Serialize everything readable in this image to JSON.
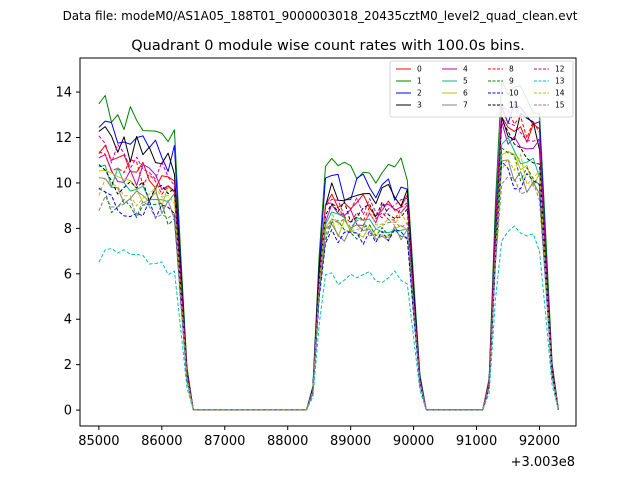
{
  "header": "Data file: modeM0/AS1A05_188T01_9000003018_20435cztM0_level2_quad_clean.evt",
  "chart_data": {
    "type": "line",
    "title": "Quadrant 0 module wise count rates with 100.0s bins.",
    "xlabel": "",
    "ylabel": "",
    "x_offset_label": "+3.003e8",
    "xlim": [
      84700,
      92580
    ],
    "ylim": [
      -0.7,
      15.5
    ],
    "x_ticks": [
      85000,
      86000,
      87000,
      88000,
      89000,
      90000,
      91000,
      92000
    ],
    "x_tick_labels": [
      "85000",
      "86000",
      "87000",
      "88000",
      "89000",
      "90000",
      "91000",
      "92000"
    ],
    "y_ticks": [
      0,
      2,
      4,
      6,
      8,
      10,
      12,
      14
    ],
    "y_tick_labels": [
      "0",
      "2",
      "4",
      "6",
      "8",
      "10",
      "12",
      "14"
    ],
    "grid": false,
    "legend": {
      "placement": "top-right",
      "columns": 4
    },
    "x_range": {
      "start": 85000,
      "step": 100,
      "count": 74
    },
    "segments": [
      {
        "from": 85000,
        "to": 86500,
        "on": true
      },
      {
        "from": 86500,
        "to": 88400,
        "on": false
      },
      {
        "from": 88400,
        "to": 90200,
        "on": true
      },
      {
        "from": 90200,
        "to": 91200,
        "on": false
      },
      {
        "from": 91200,
        "to": 92300,
        "on": true
      }
    ],
    "series": [
      {
        "name": "0",
        "color": "#ff0000",
        "style": "solid",
        "levels": [
          10.5,
          9.0,
          12.5
        ]
      },
      {
        "name": "1",
        "color": "#008000",
        "style": "solid",
        "levels": [
          12.5,
          10.5,
          14.0
        ]
      },
      {
        "name": "2",
        "color": "#0000ff",
        "style": "solid",
        "levels": [
          11.5,
          9.8,
          12.8
        ]
      },
      {
        "name": "3",
        "color": "#000000",
        "style": "solid",
        "levels": [
          11.3,
          9.5,
          12.3
        ]
      },
      {
        "name": "4",
        "color": "#bf00bf",
        "style": "solid",
        "levels": [
          10.2,
          8.6,
          12.0
        ]
      },
      {
        "name": "5",
        "color": "#00bf80",
        "style": "solid",
        "levels": [
          9.8,
          8.3,
          11.0
        ]
      },
      {
        "name": "6",
        "color": "#bfbf00",
        "style": "solid",
        "levels": [
          9.6,
          8.0,
          10.5
        ]
      },
      {
        "name": "7",
        "color": "#808080",
        "style": "solid",
        "levels": [
          9.3,
          7.8,
          10.2
        ]
      },
      {
        "name": "8",
        "color": "#ff0000",
        "style": "dashed",
        "levels": [
          10.3,
          8.7,
          12.3
        ]
      },
      {
        "name": "9",
        "color": "#008000",
        "style": "dashed",
        "levels": [
          8.8,
          7.9,
          10.6
        ]
      },
      {
        "name": "10",
        "color": "#0000ff",
        "style": "dashed",
        "levels": [
          8.8,
          7.6,
          10.0
        ]
      },
      {
        "name": "11",
        "color": "#000000",
        "style": "dashed",
        "levels": [
          9.7,
          8.7,
          11.6
        ]
      },
      {
        "name": "12",
        "color": "#bf00bf",
        "style": "dashed",
        "levels": [
          10.8,
          8.9,
          12.0
        ]
      },
      {
        "name": "13",
        "color": "#00bfbf",
        "style": "dashed",
        "levels": [
          6.5,
          5.8,
          7.5
        ]
      },
      {
        "name": "14",
        "color": "#bfbf00",
        "style": "dashed",
        "levels": [
          9.4,
          8.3,
          10.6
        ]
      },
      {
        "name": "15",
        "color": "#808080",
        "style": "dashed",
        "levels": [
          8.7,
          8.1,
          9.9
        ]
      }
    ]
  }
}
